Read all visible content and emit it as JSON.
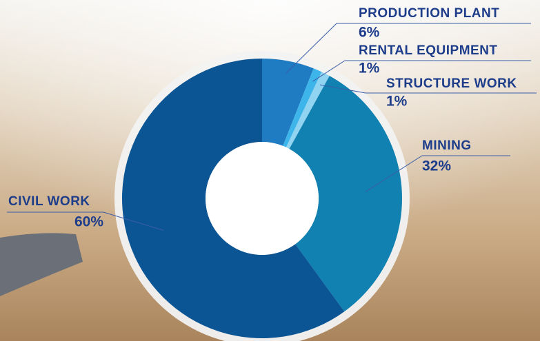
{
  "chart_data": {
    "type": "pie",
    "donut": true,
    "categories": [
      "PRODUCTION PLANT",
      "RENTAL EQUIPMENT",
      "STRUCTURE WORK",
      "MINING",
      "CIVIL WORK"
    ],
    "values": [
      6,
      1,
      1,
      32,
      60
    ],
    "value_labels": [
      "6%",
      "1%",
      "1%",
      "32%",
      "60%"
    ],
    "colors": [
      "#1f7cc2",
      "#3db5ea",
      "#90d4f1",
      "#1181b1",
      "#0b5595"
    ]
  }
}
